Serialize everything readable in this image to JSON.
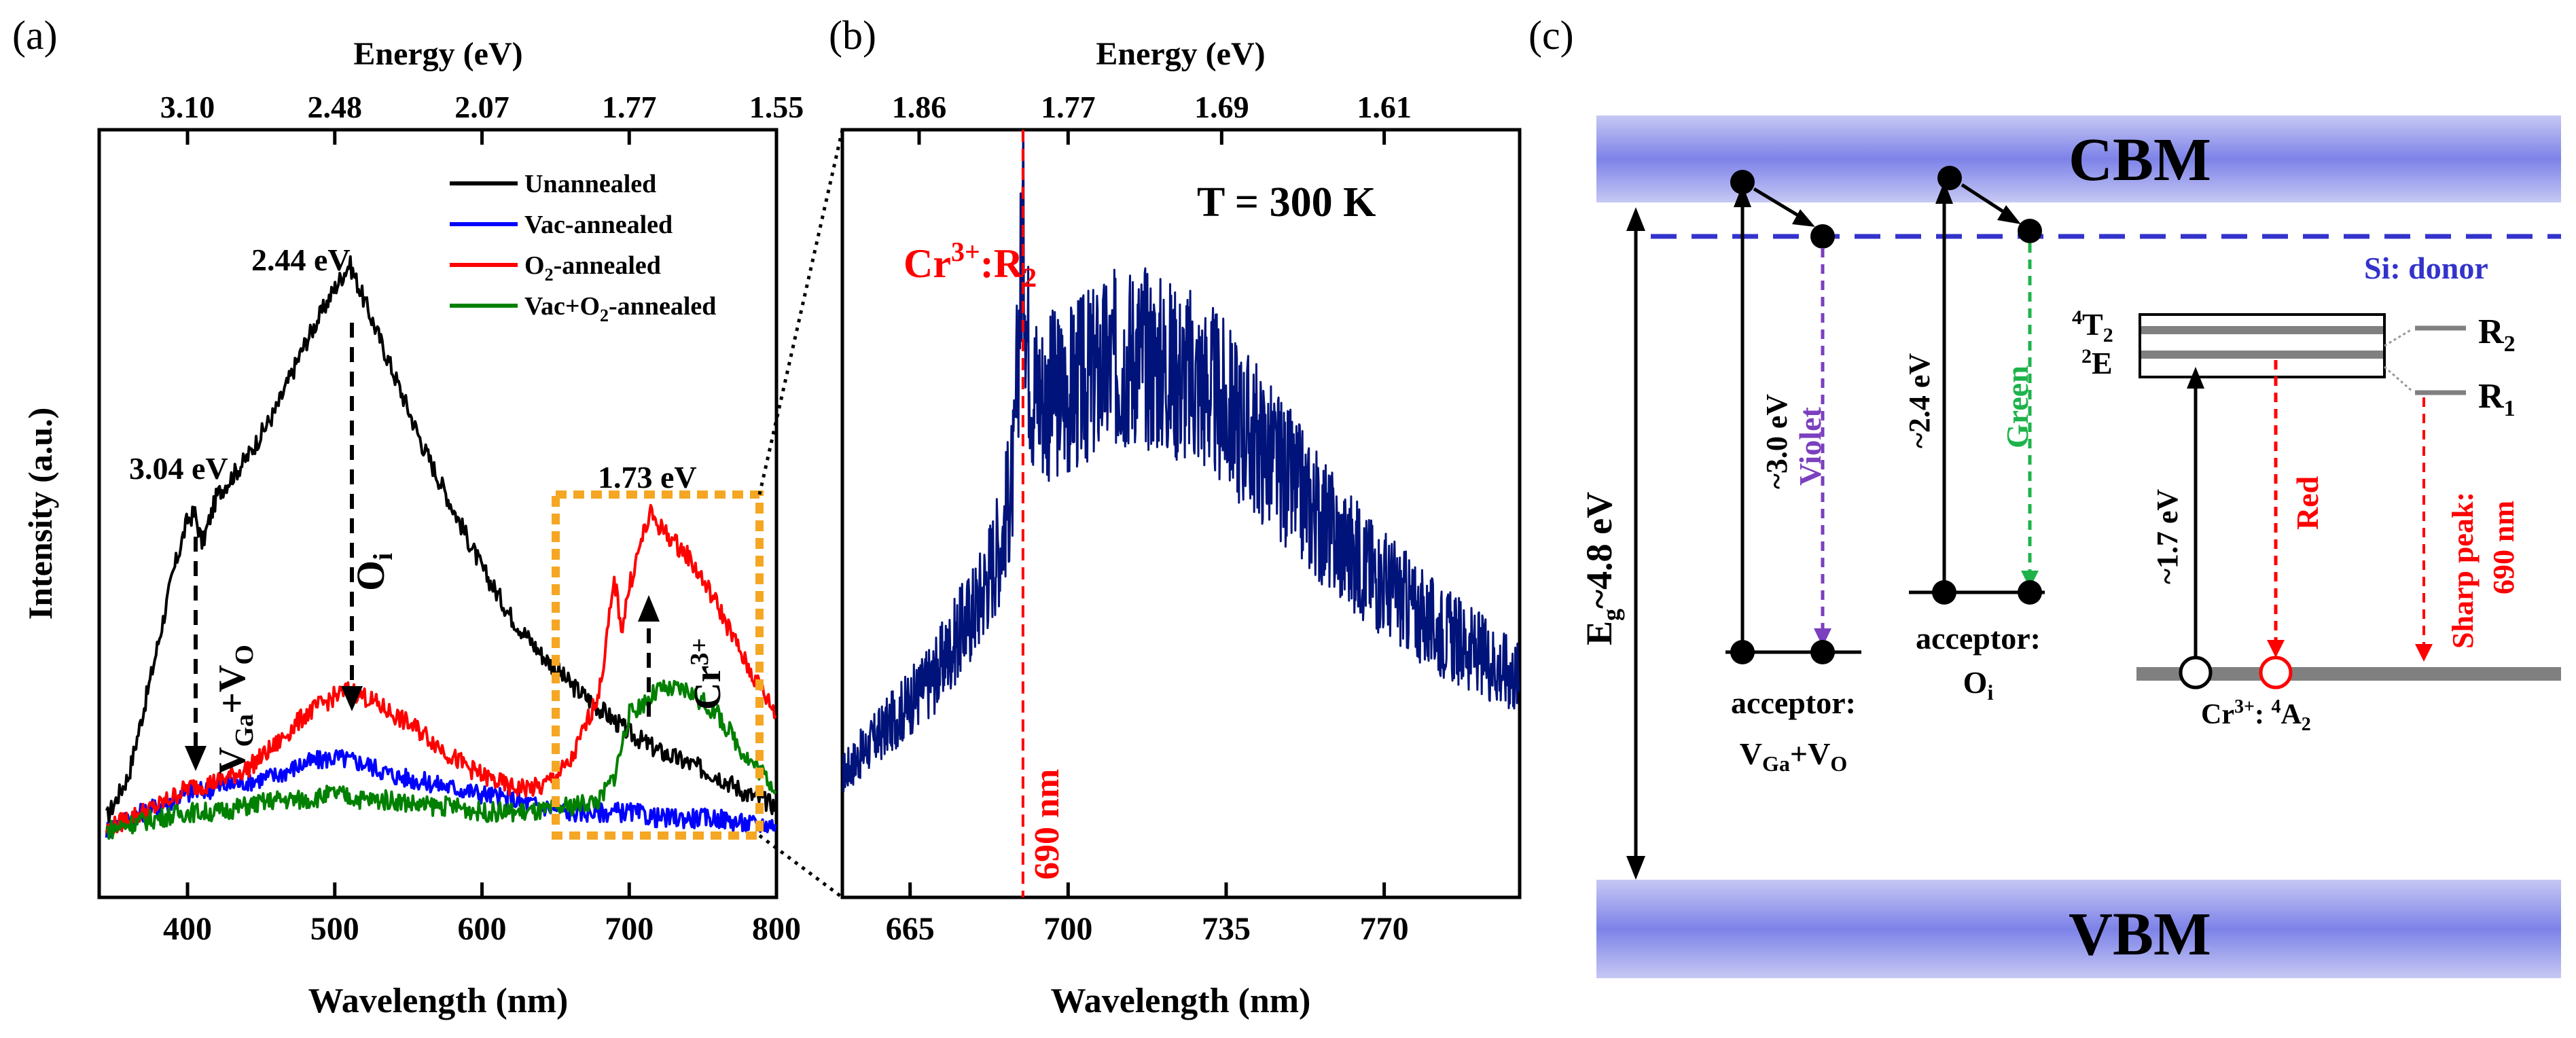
{
  "figure": {
    "panel_a_label": "(a)",
    "panel_b_label": "(b)",
    "panel_c_label": "(c)"
  },
  "chart_data": [
    {
      "type": "line",
      "panel": "(a)",
      "xlabel": "Wavelength (nm)",
      "ylabel": "Intensity (a.u.)",
      "top_axis_label": "Energy (eV)",
      "xlim": [
        340,
        800
      ],
      "ylim": [
        0,
        100
      ],
      "x_ticks": [
        400,
        500,
        600,
        700,
        800
      ],
      "top_ticks": [
        "3.10",
        "2.48",
        "2.07",
        "1.77",
        "1.55"
      ],
      "top_tick_wavelengths": [
        400,
        500,
        600,
        700,
        800
      ],
      "legend": [
        "Unannealed",
        "Vac-annealed",
        "O2-annealed",
        "Vac+O2-annealed"
      ],
      "legend_position": "top-right",
      "series": [
        {
          "name": "Unannealed",
          "color": "#000000",
          "x": [
            345,
            360,
            375,
            390,
            400,
            405,
            410,
            420,
            440,
            460,
            480,
            500,
            510,
            520,
            540,
            560,
            580,
            600,
            620,
            640,
            660,
            680,
            700,
            720,
            740,
            760,
            780,
            800
          ],
          "y": [
            5,
            12,
            28,
            45,
            54,
            55,
            50,
            58,
            64,
            72,
            83,
            92,
            96,
            90,
            78,
            66,
            56,
            46,
            38,
            32,
            27,
            23,
            19,
            16,
            14,
            12,
            9,
            7
          ]
        },
        {
          "name": "Vac-annealed",
          "color": "#0000ff",
          "x": [
            345,
            360,
            380,
            400,
            420,
            440,
            460,
            480,
            500,
            520,
            540,
            560,
            580,
            600,
            620,
            640,
            660,
            680,
            700,
            720,
            740,
            760,
            780,
            800
          ],
          "y": [
            3,
            5,
            7,
            9,
            10,
            11,
            12,
            14,
            15,
            14,
            12,
            11,
            10,
            9,
            8,
            7,
            6,
            6,
            6,
            5,
            5,
            5,
            4,
            4
          ]
        },
        {
          "name": "O2-annealed",
          "color": "#ff0000",
          "x": [
            345,
            360,
            380,
            400,
            420,
            440,
            460,
            480,
            500,
            510,
            520,
            540,
            560,
            580,
            600,
            620,
            640,
            660,
            680,
            690,
            695,
            700,
            710,
            715,
            720,
            740,
            760,
            780,
            800
          ],
          "y": [
            3,
            5,
            7,
            10,
            11,
            13,
            17,
            22,
            25,
            26,
            25,
            22,
            19,
            15,
            12,
            10,
            10,
            14,
            26,
            44,
            36,
            43,
            52,
            55,
            53,
            48,
            40,
            30,
            22
          ]
        },
        {
          "name": "Vac+O2-annealed",
          "color": "#008000",
          "x": [
            345,
            360,
            380,
            400,
            420,
            440,
            460,
            480,
            500,
            520,
            540,
            560,
            580,
            600,
            620,
            640,
            660,
            680,
            690,
            700,
            720,
            740,
            760,
            780,
            800
          ],
          "y": [
            3,
            4,
            5,
            6,
            6,
            7,
            8,
            8,
            9,
            8,
            8,
            7,
            7,
            6,
            6,
            6,
            7,
            8,
            12,
            22,
            26,
            26,
            22,
            15,
            10
          ]
        }
      ],
      "annotations": [
        "3.04 eV",
        "2.44 eV",
        "1.73 eV",
        "VGa+VO",
        "Oi",
        "Cr3+"
      ]
    },
    {
      "type": "line",
      "panel": "(b)",
      "title": "T = 300 K",
      "xlabel": "Wavelength (nm)",
      "top_axis_label": "Energy (eV)",
      "xlim": [
        650,
        800
      ],
      "x_ticks": [
        665,
        700,
        735,
        770
      ],
      "top_ticks": [
        "1.86",
        "1.77",
        "1.69",
        "1.61"
      ],
      "top_tick_wavelengths": [
        667,
        700,
        734,
        770
      ],
      "marker_line_nm": 690,
      "marker_label": "690 nm",
      "peak_label": "Cr3+:R2",
      "series": [
        {
          "name": "PL spectrum",
          "color": "#00137a",
          "x": [
            650,
            660,
            670,
            680,
            685,
            688,
            690,
            691,
            692,
            695,
            700,
            710,
            715,
            720,
            730,
            740,
            750,
            760,
            770,
            780,
            790,
            800
          ],
          "y": [
            18,
            25,
            32,
            43,
            52,
            62,
            100,
            82,
            75,
            73,
            74,
            78,
            80,
            78,
            75,
            68,
            60,
            52,
            46,
            40,
            36,
            32
          ]
        }
      ]
    }
  ],
  "diagram": {
    "cbm": "CBM",
    "vbm": "VBM",
    "donor_label": "Si: donor",
    "eg_label": "~4.8 eV",
    "e_sym": "E",
    "g_sub": "g",
    "violet_energy": "~3.0 eV",
    "violet_label": "Violet",
    "green_energy": "~2.4 eV",
    "green_label": "Green",
    "acceptor_label": "acceptor:",
    "acceptor1_v": "V",
    "acceptor1_ga": "Ga",
    "acceptor1_mid": "+V",
    "acceptor1_o": "O",
    "acceptor2_o": "O",
    "acceptor2_i": "i",
    "t2_sup": "4",
    "t2_t": "T",
    "t2_sub": "2",
    "e_sup": "2",
    "e_e": "E",
    "r2_r": "R",
    "r2_sub": "2",
    "r1_r": "R",
    "r1_sub": "1",
    "cr_energy": "~1.7 eV",
    "red_label": "Red",
    "sharp_label": "Sharp peak:",
    "sharp_nm": "690 nm",
    "cr_ground_pre": "Cr",
    "cr_ground_sup": "3+",
    "cr_ground_mid": ": ",
    "cr_ground_sup2": "4",
    "cr_ground_a": "A",
    "cr_ground_sub": "2"
  },
  "labels_a": {
    "v_ga": "V",
    "ga_sub": "Ga",
    "plus_v": "+V",
    "o_sub": "O",
    "oi_o": "O",
    "oi_i": "i",
    "cr": "Cr",
    "cr_sup": "3+",
    "o2_o": "O",
    "o2_sub": "2",
    "o2_rest": "-annealed",
    "vo2_pre": "Vac+O",
    "vo2_sub": "2",
    "vo2_rest": "-annealed"
  },
  "labels_b": {
    "cr": "Cr",
    "cr_sup": "3+",
    "r": ":R",
    "r_sub": "2"
  },
  "colors": {
    "unannealed": "#000000",
    "vac": "#0000ff",
    "o2": "#ff0000",
    "vaco2": "#008000",
    "panel_b_line": "#00137a",
    "orange_box": "#f5a623",
    "violet": "#7b3fbf",
    "green": "#1db34a",
    "donor": "#3333cc",
    "red": "#ff0000"
  }
}
